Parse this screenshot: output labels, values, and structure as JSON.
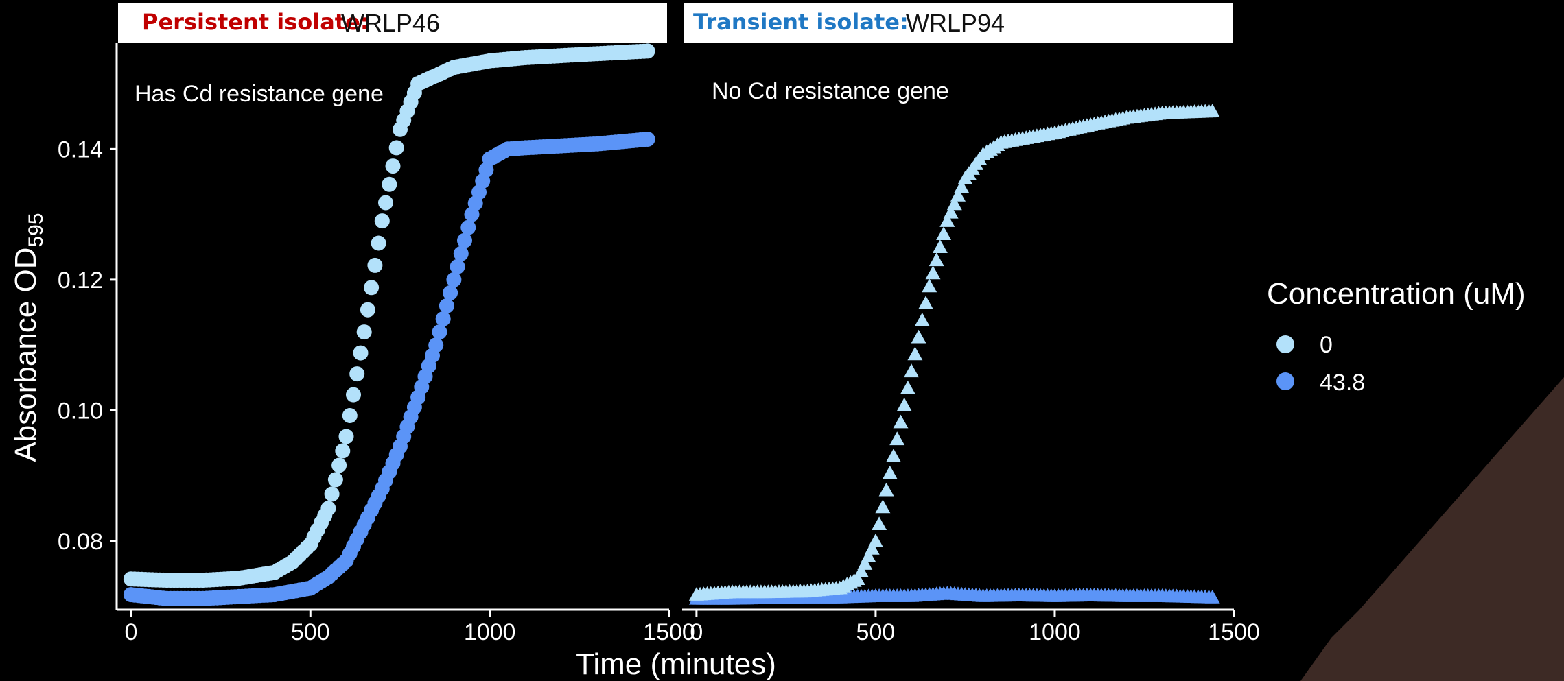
{
  "colors": {
    "background": "#000000",
    "axis": "#ffffff",
    "text": "#ffffff",
    "strip_bg": "#ffffff",
    "strip_text": "#111111",
    "persistent_red": "#c00000",
    "transient_blue": "#1f78c4",
    "conc_0": "#b3e1fa",
    "conc_43_8": "#5b94f7",
    "corner_decor": "#3d2a25"
  },
  "chart_data": {
    "type": "scatter",
    "ylabel": "Absorbance OD",
    "ylabel_sub": "595",
    "xlabel": "Time (minutes)",
    "xlim": [
      -40,
      1500
    ],
    "ylim": [
      0.0695,
      0.1562
    ],
    "x_ticks": [
      0,
      500,
      1000,
      1500
    ],
    "y_ticks": [
      0.08,
      0.1,
      0.12,
      0.14
    ],
    "y_tick_labels": [
      "0.08",
      "0.10",
      "0.12",
      "0.14"
    ],
    "x_tick_labels": [
      "0",
      "500",
      "1000",
      "1500"
    ],
    "legend": {
      "title": "Concentration (uM)",
      "placement": "right",
      "entries": [
        {
          "label": "0",
          "color": "#b3e1fa"
        },
        {
          "label": "43.8",
          "color": "#5b94f7"
        }
      ]
    },
    "facets": [
      {
        "strip_prefix": "Persistent isolate:",
        "strip_prefix_color": "#c00000",
        "strip_name": "WRLP46",
        "annotation": "Has Cd resistance gene",
        "marker": "circle",
        "series": [
          {
            "name": "0",
            "color": "#b3e1fa",
            "x": [
              0,
              100,
              200,
              300,
              400,
              450,
              500,
              550,
              600,
              650,
              700,
              750,
              800,
              900,
              1000,
              1100,
              1200,
              1300,
              1440
            ],
            "y": [
              0.0742,
              0.074,
              0.074,
              0.0743,
              0.0752,
              0.0768,
              0.0795,
              0.085,
              0.096,
              0.112,
              0.129,
              0.143,
              0.15,
              0.1525,
              0.1535,
              0.154,
              0.1543,
              0.1546,
              0.155
            ]
          },
          {
            "name": "43.8",
            "color": "#5b94f7",
            "x": [
              0,
              100,
              200,
              300,
              400,
              500,
              550,
              600,
              650,
              700,
              750,
              800,
              850,
              900,
              950,
              1000,
              1050,
              1100,
              1200,
              1300,
              1440
            ],
            "y": [
              0.0718,
              0.0712,
              0.0712,
              0.0715,
              0.0718,
              0.0728,
              0.0745,
              0.077,
              0.0825,
              0.088,
              0.0945,
              0.102,
              0.11,
              0.12,
              0.13,
              0.1385,
              0.14,
              0.1402,
              0.1405,
              0.1408,
              0.1415
            ]
          }
        ]
      },
      {
        "strip_prefix": "Transient isolate:",
        "strip_prefix_color": "#1f78c4",
        "strip_name": "WRLP94",
        "annotation": "No Cd resistance gene",
        "marker": "triangle",
        "series": [
          {
            "name": "0",
            "color": "#b3e1fa",
            "x": [
              0,
              100,
              200,
              300,
              400,
              450,
              500,
              550,
              600,
              650,
              700,
              750,
              800,
              850,
              900,
              1000,
              1100,
              1200,
              1300,
              1440
            ],
            "y": [
              0.0718,
              0.0722,
              0.0722,
              0.0723,
              0.0728,
              0.0742,
              0.08,
              0.093,
              0.106,
              0.119,
              0.129,
              0.1355,
              0.1392,
              0.141,
              0.1415,
              0.1425,
              0.1437,
              0.1448,
              0.1455,
              0.1458
            ]
          },
          {
            "name": "43.8",
            "color": "#5b94f7",
            "x": [
              0,
              100,
              200,
              300,
              400,
              500,
              600,
              700,
              800,
              900,
              1000,
              1100,
              1200,
              1300,
              1440
            ],
            "y": [
              0.0712,
              0.0712,
              0.0713,
              0.0714,
              0.0714,
              0.0716,
              0.0716,
              0.072,
              0.0716,
              0.0717,
              0.0716,
              0.0717,
              0.0716,
              0.0716,
              0.0714
            ]
          }
        ]
      }
    ]
  }
}
